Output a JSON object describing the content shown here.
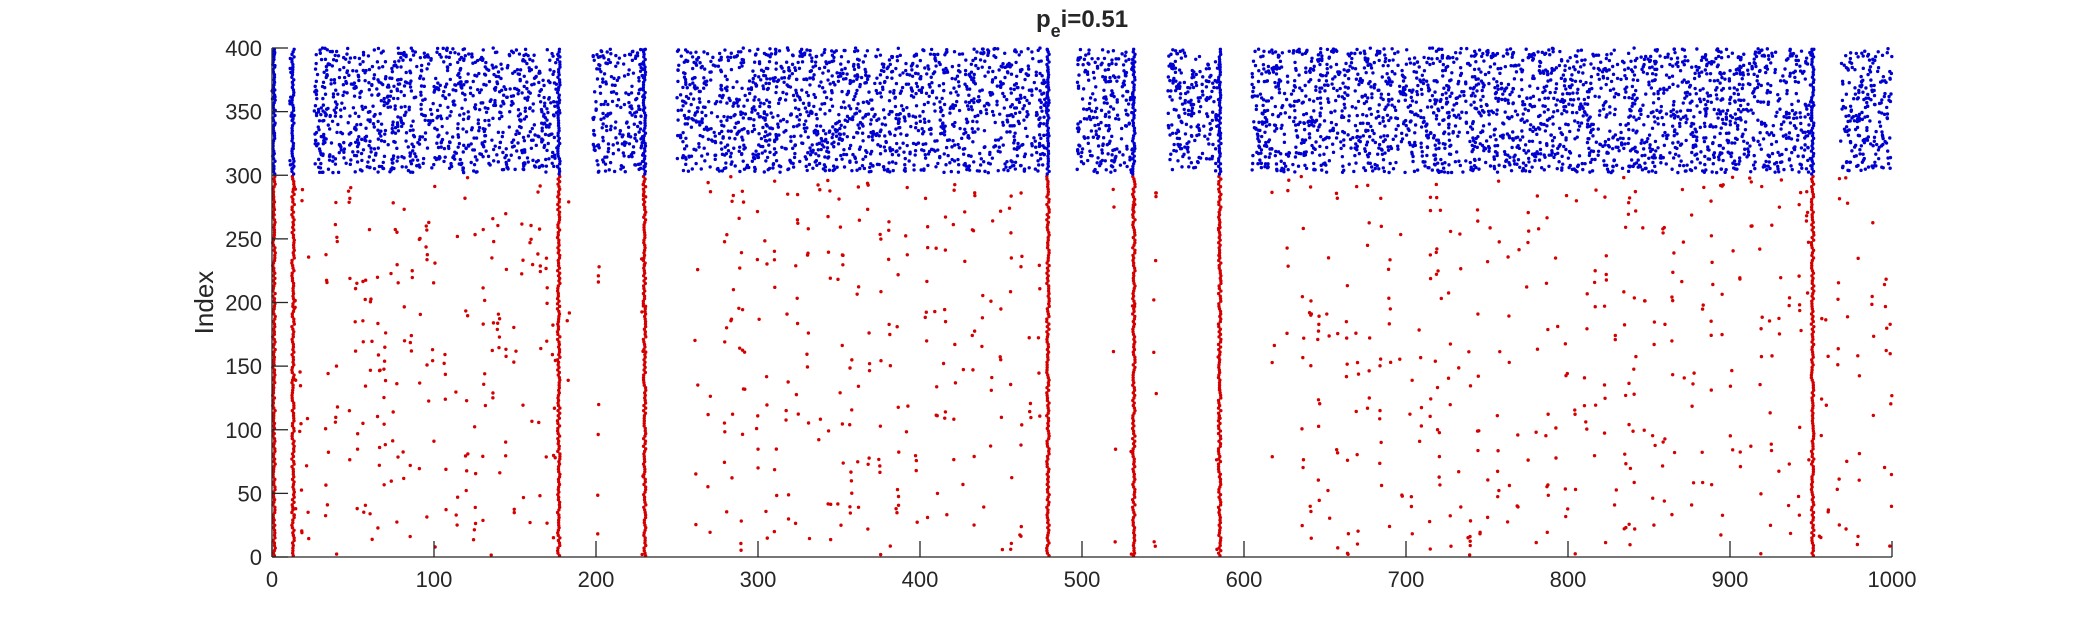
{
  "chart_data": {
    "type": "scatter",
    "title": "p_ei=0.51",
    "title_parts": {
      "base": "p",
      "subscript": "e",
      "rest": "i=0.51"
    },
    "xlabel": "",
    "ylabel": "Index",
    "xlim": [
      0,
      1000
    ],
    "ylim": [
      0,
      400
    ],
    "xticks": [
      0,
      100,
      200,
      300,
      400,
      500,
      600,
      700,
      800,
      900,
      1000
    ],
    "yticks": [
      0,
      50,
      100,
      150,
      200,
      250,
      300,
      350,
      400
    ],
    "grid": false,
    "legend": "none",
    "excitatory_index_range": [
      1,
      300
    ],
    "inhibitory_index_range": [
      301,
      400
    ],
    "colors": {
      "excitatory": "#d40000",
      "inhibitory": "#0000d4",
      "axis": "#262626"
    },
    "synchronous_event_times": [
      0,
      13,
      177,
      230,
      479,
      532,
      585,
      951
    ],
    "sparse_excitatory_spike_times": [
      14,
      18,
      22,
      34,
      40,
      48,
      52,
      57,
      61,
      66,
      70,
      74,
      77,
      81,
      86,
      91,
      96,
      100,
      107,
      114,
      120,
      125,
      131,
      136,
      140,
      145,
      150,
      155,
      160,
      165,
      170,
      174,
      183,
      201,
      229,
      262,
      270,
      280,
      284,
      289,
      291,
      300,
      305,
      311,
      318,
      324,
      331,
      338,
      344,
      350,
      352,
      357,
      362,
      368,
      375,
      381,
      386,
      392,
      398,
      404,
      410,
      415,
      416,
      421,
      427,
      433,
      439,
      444,
      450,
      456,
      462,
      468,
      474,
      520,
      531,
      545,
      584,
      618,
      627,
      636,
      641,
      646,
      652,
      658,
      664,
      670,
      677,
      684,
      690,
      697,
      703,
      709,
      715,
      719,
      721,
      727,
      733,
      739,
      745,
      751,
      757,
      763,
      769,
      775,
      781,
      787,
      793,
      799,
      805,
      811,
      817,
      823,
      829,
      835,
      838,
      841,
      847,
      853,
      859,
      865,
      871,
      877,
      883,
      889,
      895,
      901,
      907,
      913,
      919,
      925,
      931,
      937,
      943,
      948,
      956,
      960,
      967,
      972,
      979,
      988,
      996,
      999
    ],
    "inhibitory_active_intervals": [
      [
        0,
        2
      ],
      [
        11,
        13
      ],
      [
        26,
        177
      ],
      [
        198,
        230
      ],
      [
        250,
        479
      ],
      [
        497,
        532
      ],
      [
        553,
        585
      ],
      [
        605,
        951
      ],
      [
        968,
        1000
      ]
    ]
  }
}
